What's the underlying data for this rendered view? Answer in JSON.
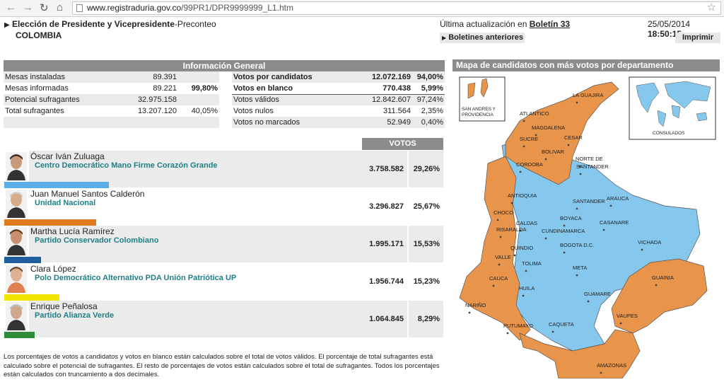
{
  "browser": {
    "url_host": "www.registraduria.gov.co",
    "url_path": "/99PR1/DPR9999999_L1.htm"
  },
  "header": {
    "title": "Elección de Presidente y Vicepresidente",
    "subtitle": "-Preconteo",
    "country": "COLOMBIA",
    "update_label": "Última actualización en",
    "bulletin": "Boletín 33",
    "date": "25/05/2014",
    "time": "18:50:15",
    "prev_bulletins": "Boletines anteriores",
    "print": "Imprimir"
  },
  "info": {
    "title": "Información General",
    "left": [
      {
        "label": "Mesas instaladas",
        "value": "89.391",
        "pct": ""
      },
      {
        "label": "Mesas informadas",
        "value": "89.221",
        "pct": "99,80%"
      },
      {
        "label": "Potencial sufragantes",
        "value": "32.975.158",
        "pct": ""
      },
      {
        "label": "Total sufragantes",
        "value": "13.207.120",
        "pct": "40,05%"
      }
    ],
    "right": [
      {
        "label": "Votos por candidatos",
        "value": "12.072.169",
        "pct": "94,00%"
      },
      {
        "label": "Votos en blanco",
        "value": "770.438",
        "pct": "5,99%"
      },
      {
        "label": "Votos válidos",
        "value": "12.842.607",
        "pct": "97,24%"
      },
      {
        "label": "Votos nulos",
        "value": "311.564",
        "pct": "2,35%"
      },
      {
        "label": "Votos no marcados",
        "value": "52.949",
        "pct": "0,40%"
      }
    ]
  },
  "votes_header": "VOTOS",
  "candidates": [
    {
      "name": "Óscar Iván Zuluaga",
      "party": "Centro Democrático Mano Firme Corazón Grande",
      "votes": "3.758.582",
      "pct": "29,26%",
      "color": "#5aaee6"
    },
    {
      "name": "Juan Manuel Santos Calderón",
      "party": "Unidad Nacional",
      "votes": "3.296.827",
      "pct": "25,67%",
      "color": "#e07b1e"
    },
    {
      "name": "Martha Lucía Ramírez",
      "party": "Partido Conservador Colombiano",
      "votes": "1.995.171",
      "pct": "15,53%",
      "color": "#1f5f9f"
    },
    {
      "name": "Clara López",
      "party": "Polo Democrático Alternativo PDA Unión Patriótica UP",
      "votes": "1.956.744",
      "pct": "15,23%",
      "color": "#f2e600"
    },
    {
      "name": "Enrique Peñalosa",
      "party": "Partido Alianza Verde",
      "votes": "1.064.845",
      "pct": "8,29%",
      "color": "#2e8b3a"
    }
  ],
  "footnote": "Los porcentajes de votos a candidatos y votos en blanco están calculados sobre el total de votos válidos. El porcentaje de total sufragantes está calculado sobre el potencial de sufragantes. El resto de porcentajes de votos están calculados sobre el total de sufragantes. Todos los porcentajes están calculados con truncamiento a dos decimales.",
  "map": {
    "title": "Mapa de candidatos con más votos por departamento",
    "colors": {
      "orange": "#e8944a",
      "blue": "#86c7ee"
    },
    "inset_islands": "SAN ANDRES Y PROVIDENCIA",
    "inset_consulados": "CONSULADOS",
    "departments": [
      "LA GUAJIRA",
      "ATLANTICO",
      "MAGDALENA",
      "SUCRE",
      "CESAR",
      "BOLIVAR",
      "CORDOBA",
      "NORTE DE",
      "SANTANDER",
      "ANTIOQUIA",
      "SANTANDER",
      "ARAUCA",
      "CHOCO",
      "BOYACA",
      "CASANARE",
      "CALDAS",
      "RISARALDA",
      "CUNDINAMARCA",
      "VICHADA",
      "QUINDIO",
      "BOGOTA D.C.",
      "VALLE",
      "TOLIMA",
      "META",
      "GUAINIA",
      "CAUCA",
      "HUILA",
      "GUAMARE",
      "NARIÑO",
      "VAUPES",
      "PUTUMAYO",
      "CAQUETA",
      "AMAZONAS"
    ]
  }
}
